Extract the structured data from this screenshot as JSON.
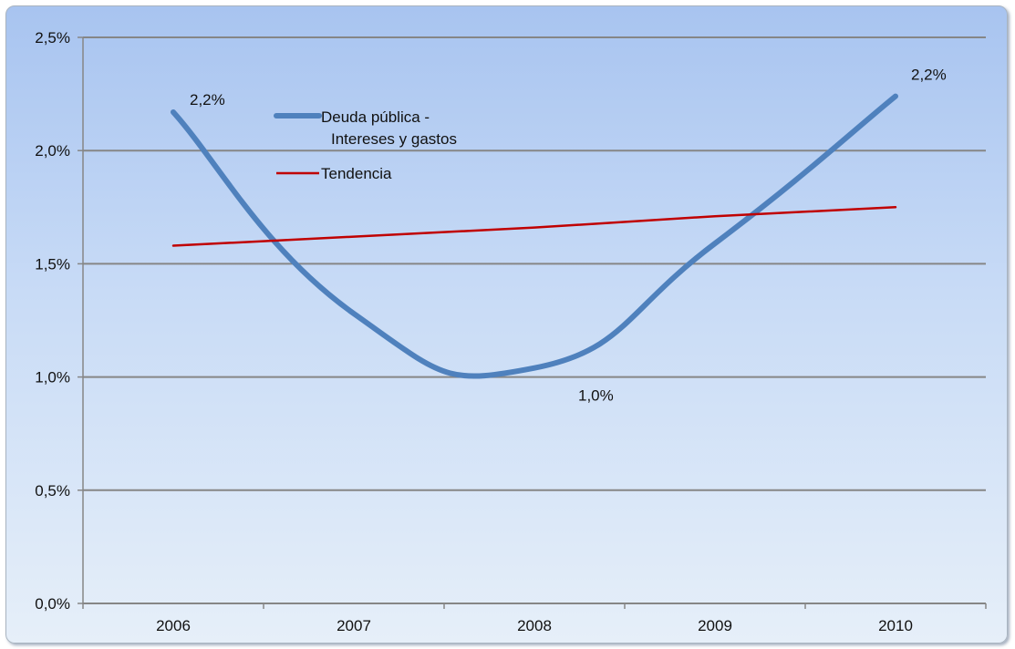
{
  "chart_data": {
    "type": "line",
    "title": "",
    "xlabel": "",
    "ylabel": "",
    "categories": [
      "2006",
      "2007",
      "2008",
      "2009",
      "2010"
    ],
    "ylim": [
      0,
      0.025
    ],
    "yticks": [
      0,
      0.005,
      0.01,
      0.015,
      0.02,
      0.025
    ],
    "ytick_labels": [
      "0,0%",
      "0,5%",
      "1,0%",
      "1,5%",
      "2,0%",
      "2,5%"
    ],
    "grid": "horizontal",
    "legend_position": "top-left",
    "series": [
      {
        "name": "Deuda pública - Intereses y gastos",
        "legend_lines": [
          "Deuda pública -",
          "Intereses y gastos"
        ],
        "color": "#4f81bd",
        "smooth": true,
        "values": [
          0.0217,
          0.0128,
          0.0104,
          0.0159,
          0.0224
        ],
        "data_labels": [
          "2,2%",
          "",
          "1,0%",
          "",
          "2,2%"
        ]
      },
      {
        "name": "Tendencia",
        "color": "#c00000",
        "values": [
          0.0158,
          0.0162,
          0.0166,
          0.0171,
          0.0175
        ]
      }
    ]
  }
}
